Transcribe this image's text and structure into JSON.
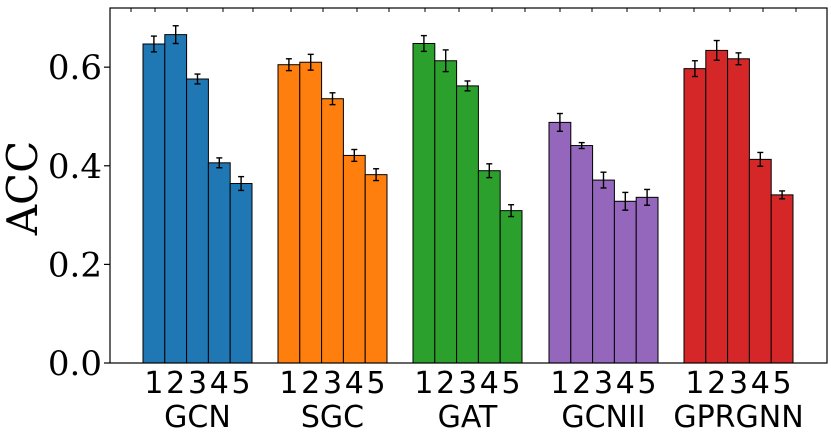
{
  "chart_data": {
    "type": "bar",
    "title": "",
    "xlabel": "",
    "ylabel": "ACC",
    "ylim": [
      0.0,
      0.72
    ],
    "yticks": [
      0.0,
      0.2,
      0.4,
      0.6
    ],
    "ytick_labels": [
      "0.0",
      "0.2",
      "0.4",
      "0.6"
    ],
    "grid": false,
    "sub_categories": [
      "1",
      "2",
      "3",
      "4",
      "5"
    ],
    "groups": [
      {
        "name": "GCN",
        "color": "#1f77b4",
        "values": [
          0.647,
          0.666,
          0.576,
          0.406,
          0.364
        ],
        "errors": [
          0.016,
          0.018,
          0.01,
          0.01,
          0.014
        ]
      },
      {
        "name": "SGC",
        "color": "#ff7f0e",
        "values": [
          0.605,
          0.61,
          0.536,
          0.421,
          0.382
        ],
        "errors": [
          0.012,
          0.016,
          0.012,
          0.012,
          0.012
        ]
      },
      {
        "name": "GAT",
        "color": "#2ca02c",
        "values": [
          0.648,
          0.613,
          0.562,
          0.39,
          0.309
        ],
        "errors": [
          0.016,
          0.022,
          0.01,
          0.014,
          0.012
        ]
      },
      {
        "name": "GCNII",
        "color": "#9467bd",
        "values": [
          0.488,
          0.441,
          0.371,
          0.328,
          0.336
        ],
        "errors": [
          0.018,
          0.006,
          0.016,
          0.018,
          0.016
        ]
      },
      {
        "name": "GPRGNN",
        "color": "#d62728",
        "values": [
          0.597,
          0.634,
          0.617,
          0.413,
          0.341
        ],
        "errors": [
          0.016,
          0.02,
          0.012,
          0.014,
          0.008
        ]
      }
    ]
  }
}
